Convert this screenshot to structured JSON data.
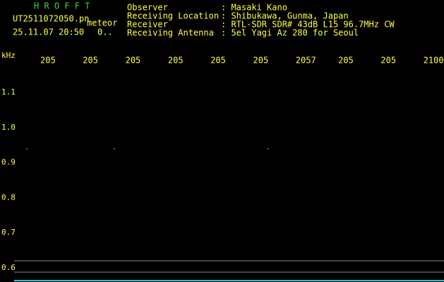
{
  "header": {
    "app": "H R O F F T",
    "file": "UT2511072050.pn",
    "mode": "meteor",
    "datetime": "25.11.07 20:50",
    "count": "0..",
    "fields": [
      {
        "label": "Observer",
        "value": ": Masaki Kano"
      },
      {
        "label": "Receiving Location",
        "value": ": Shibukawa, Gunma, Japan"
      },
      {
        "label": "Receiver",
        "value": ": RTL-SDR SDR# 43dB L15 96.7MHz CW"
      },
      {
        "label": "Receiving Antenna",
        "value": ": 5el Yagi Az 280 for Seoul"
      }
    ]
  },
  "axes": {
    "y_unit": "kHz",
    "x_labels": [
      "205",
      "205",
      "205",
      "205",
      "205",
      "205",
      "2057",
      "205",
      "205",
      "2100"
    ],
    "y_labels": [
      "1.1",
      "1.0",
      "0.9",
      "0.8",
      "0.7",
      "0.6"
    ]
  }
}
